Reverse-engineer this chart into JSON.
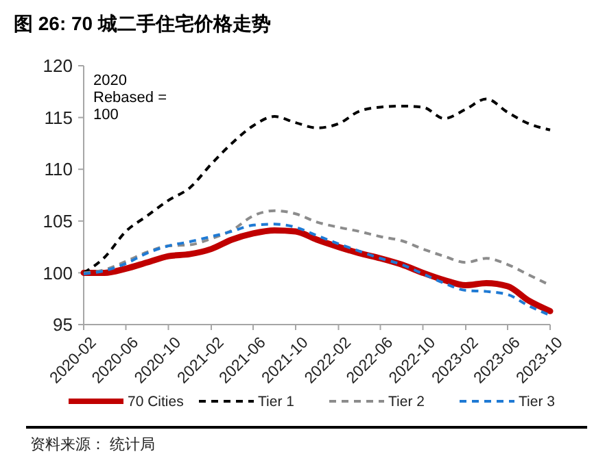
{
  "chart_data": {
    "type": "line",
    "title": "图 26: 70 城二手住宅价格走势",
    "x": [
      "2020-02",
      "2020-04",
      "2020-06",
      "2020-08",
      "2020-10",
      "2020-12",
      "2021-02",
      "2021-04",
      "2021-06",
      "2021-08",
      "2021-10",
      "2021-12",
      "2022-02",
      "2022-04",
      "2022-06",
      "2022-08",
      "2022-10",
      "2022-12",
      "2023-02",
      "2023-04",
      "2023-06",
      "2023-08",
      "2023-10"
    ],
    "series": [
      {
        "name": "70 Cities",
        "color": "#c00000",
        "line_style": "solid",
        "values": [
          100,
          100.0,
          100.4,
          101.0,
          101.6,
          101.8,
          102.3,
          103.2,
          103.8,
          104.1,
          104.0,
          103.2,
          102.5,
          101.9,
          101.4,
          100.8,
          100.0,
          99.3,
          98.8,
          99.0,
          98.7,
          97.3,
          96.3
        ]
      },
      {
        "name": "Tier 1",
        "color": "#000000",
        "line_style": "dashed",
        "values": [
          100,
          101.5,
          104.0,
          105.5,
          107.0,
          108.2,
          110.5,
          112.5,
          114.2,
          115.1,
          114.5,
          114.0,
          114.4,
          115.6,
          116.0,
          116.1,
          116.0,
          114.9,
          115.8,
          116.8,
          115.5,
          114.4,
          113.8
        ]
      },
      {
        "name": "Tier 2",
        "color": "#8c8c8c",
        "line_style": "dashed",
        "values": [
          100,
          100.3,
          101.1,
          102.0,
          102.6,
          102.7,
          103.3,
          104.1,
          105.5,
          106.0,
          105.7,
          104.9,
          104.4,
          104.0,
          103.5,
          103.1,
          102.3,
          101.6,
          101.0,
          101.4,
          100.8,
          99.8,
          98.8
        ]
      },
      {
        "name": "Tier 3",
        "color": "#1f7ad4",
        "line_style": "dashed",
        "values": [
          99.9,
          100.2,
          100.9,
          101.9,
          102.6,
          103.0,
          103.5,
          104.0,
          104.6,
          104.7,
          104.4,
          103.6,
          102.8,
          102.1,
          101.4,
          100.8,
          99.9,
          99.0,
          98.3,
          98.2,
          97.9,
          96.8,
          95.9
        ]
      }
    ],
    "xlim": [
      "2020-02",
      "2023-10"
    ],
    "xticks": [
      "2020-02",
      "2020-06",
      "2020-10",
      "2021-02",
      "2021-06",
      "2021-10",
      "2022-02",
      "2022-06",
      "2022-10",
      "2023-02",
      "2023-06",
      "2023-10"
    ],
    "ylim": [
      95,
      120
    ],
    "yticks": [
      95,
      100,
      105,
      110,
      115,
      120
    ],
    "grid": false,
    "legend": "bottom",
    "annotations": [
      "2020\nRebased =\n100",
      "资料来源：  统计局"
    ]
  }
}
